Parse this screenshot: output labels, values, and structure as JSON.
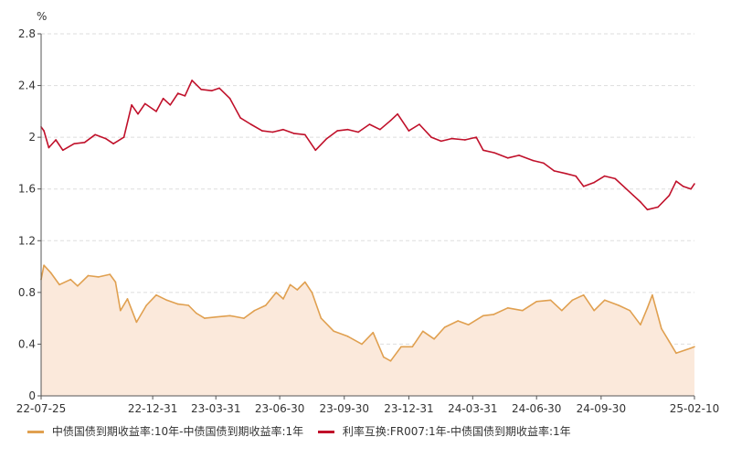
{
  "chart_data": {
    "type": "area",
    "ylabel": "%",
    "ylim": [
      0,
      2.8
    ],
    "yticks": [
      "0",
      "0.4",
      "0.8",
      "1.2",
      "1.6",
      "2",
      "2.4",
      "2.8"
    ],
    "xlim": [
      "2022-07-25",
      "2025-02-10"
    ],
    "xticks": [
      {
        "date": "2022-07-25",
        "label": "22-07-25"
      },
      {
        "date": "2022-12-31",
        "label": "22-12-31"
      },
      {
        "date": "2023-03-31",
        "label": "23-03-31"
      },
      {
        "date": "2023-06-30",
        "label": "23-06-30"
      },
      {
        "date": "2023-09-30",
        "label": "23-09-30"
      },
      {
        "date": "2023-12-31",
        "label": "23-12-31"
      },
      {
        "date": "2024-03-31",
        "label": "24-03-31"
      },
      {
        "date": "2024-06-30",
        "label": "24-06-30"
      },
      {
        "date": "2024-09-30",
        "label": "24-09-30"
      },
      {
        "date": "2025-02-10",
        "label": "25-02-10"
      }
    ],
    "grid": true,
    "legend_position": "bottom",
    "series": [
      {
        "name": "中债国债到期收益率:10年-中债国债到期收益率:1年",
        "color": "#e0a050",
        "fill": "#fbe9db",
        "style": "area",
        "points": [
          [
            "2022-07-25",
            0.9
          ],
          [
            "2022-07-29",
            1.01
          ],
          [
            "2022-08-08",
            0.95
          ],
          [
            "2022-08-20",
            0.86
          ],
          [
            "2022-09-05",
            0.9
          ],
          [
            "2022-09-15",
            0.85
          ],
          [
            "2022-09-30",
            0.93
          ],
          [
            "2022-10-15",
            0.92
          ],
          [
            "2022-10-31",
            0.94
          ],
          [
            "2022-11-08",
            0.88
          ],
          [
            "2022-11-15",
            0.66
          ],
          [
            "2022-11-25",
            0.75
          ],
          [
            "2022-12-08",
            0.57
          ],
          [
            "2022-12-22",
            0.7
          ],
          [
            "2023-01-05",
            0.78
          ],
          [
            "2023-01-20",
            0.74
          ],
          [
            "2023-02-05",
            0.71
          ],
          [
            "2023-02-20",
            0.7
          ],
          [
            "2023-03-03",
            0.64
          ],
          [
            "2023-03-15",
            0.6
          ],
          [
            "2023-04-01",
            0.61
          ],
          [
            "2023-04-20",
            0.62
          ],
          [
            "2023-05-10",
            0.6
          ],
          [
            "2023-05-25",
            0.66
          ],
          [
            "2023-06-10",
            0.7
          ],
          [
            "2023-06-25",
            0.8
          ],
          [
            "2023-07-05",
            0.75
          ],
          [
            "2023-07-15",
            0.86
          ],
          [
            "2023-07-25",
            0.82
          ],
          [
            "2023-08-05",
            0.88
          ],
          [
            "2023-08-15",
            0.8
          ],
          [
            "2023-08-28",
            0.6
          ],
          [
            "2023-09-15",
            0.5
          ],
          [
            "2023-10-05",
            0.46
          ],
          [
            "2023-10-25",
            0.4
          ],
          [
            "2023-11-10",
            0.49
          ],
          [
            "2023-11-25",
            0.3
          ],
          [
            "2023-12-05",
            0.27
          ],
          [
            "2023-12-20",
            0.38
          ],
          [
            "2024-01-05",
            0.38
          ],
          [
            "2024-01-20",
            0.5
          ],
          [
            "2024-02-05",
            0.44
          ],
          [
            "2024-02-20",
            0.53
          ],
          [
            "2024-03-10",
            0.58
          ],
          [
            "2024-03-25",
            0.55
          ],
          [
            "2024-04-15",
            0.62
          ],
          [
            "2024-04-30",
            0.63
          ],
          [
            "2024-05-20",
            0.68
          ],
          [
            "2024-06-10",
            0.66
          ],
          [
            "2024-06-30",
            0.73
          ],
          [
            "2024-07-20",
            0.74
          ],
          [
            "2024-08-05",
            0.66
          ],
          [
            "2024-08-20",
            0.74
          ],
          [
            "2024-09-05",
            0.78
          ],
          [
            "2024-09-20",
            0.66
          ],
          [
            "2024-10-05",
            0.74
          ],
          [
            "2024-10-25",
            0.7
          ],
          [
            "2024-11-10",
            0.66
          ],
          [
            "2024-11-25",
            0.55
          ],
          [
            "2024-12-05",
            0.68
          ],
          [
            "2024-12-12",
            0.78
          ],
          [
            "2024-12-25",
            0.52
          ],
          [
            "2025-01-05",
            0.42
          ],
          [
            "2025-01-15",
            0.33
          ],
          [
            "2025-02-05",
            0.37
          ],
          [
            "2025-02-10",
            0.38
          ]
        ]
      },
      {
        "name": "利率互换:FR007:1年-中债国债到期收益率:1年",
        "color": "#c0102a",
        "style": "line",
        "points": [
          [
            "2022-07-25",
            2.08
          ],
          [
            "2022-07-29",
            2.05
          ],
          [
            "2022-08-05",
            1.92
          ],
          [
            "2022-08-15",
            1.98
          ],
          [
            "2022-08-25",
            1.9
          ],
          [
            "2022-09-10",
            1.95
          ],
          [
            "2022-09-25",
            1.96
          ],
          [
            "2022-10-10",
            2.02
          ],
          [
            "2022-10-25",
            1.99
          ],
          [
            "2022-11-05",
            1.95
          ],
          [
            "2022-11-20",
            2.0
          ],
          [
            "2022-12-01",
            2.25
          ],
          [
            "2022-12-10",
            2.18
          ],
          [
            "2022-12-20",
            2.26
          ],
          [
            "2023-01-05",
            2.2
          ],
          [
            "2023-01-15",
            2.3
          ],
          [
            "2023-01-25",
            2.25
          ],
          [
            "2023-02-05",
            2.34
          ],
          [
            "2023-02-15",
            2.32
          ],
          [
            "2023-02-25",
            2.44
          ],
          [
            "2023-03-10",
            2.37
          ],
          [
            "2023-03-25",
            2.36
          ],
          [
            "2023-04-05",
            2.38
          ],
          [
            "2023-04-20",
            2.3
          ],
          [
            "2023-05-05",
            2.15
          ],
          [
            "2023-05-20",
            2.1
          ],
          [
            "2023-06-05",
            2.05
          ],
          [
            "2023-06-20",
            2.04
          ],
          [
            "2023-07-05",
            2.06
          ],
          [
            "2023-07-20",
            2.03
          ],
          [
            "2023-08-05",
            2.02
          ],
          [
            "2023-08-20",
            1.9
          ],
          [
            "2023-09-05",
            1.99
          ],
          [
            "2023-09-20",
            2.05
          ],
          [
            "2023-10-05",
            2.06
          ],
          [
            "2023-10-20",
            2.04
          ],
          [
            "2023-11-05",
            2.1
          ],
          [
            "2023-11-20",
            2.06
          ],
          [
            "2023-12-05",
            2.13
          ],
          [
            "2023-12-15",
            2.18
          ],
          [
            "2023-12-31",
            2.05
          ],
          [
            "2024-01-15",
            2.1
          ],
          [
            "2024-02-01",
            2.0
          ],
          [
            "2024-02-15",
            1.97
          ],
          [
            "2024-03-01",
            1.99
          ],
          [
            "2024-03-20",
            1.98
          ],
          [
            "2024-04-05",
            2.0
          ],
          [
            "2024-04-15",
            1.9
          ],
          [
            "2024-05-01",
            1.88
          ],
          [
            "2024-05-20",
            1.84
          ],
          [
            "2024-06-05",
            1.86
          ],
          [
            "2024-06-25",
            1.82
          ],
          [
            "2024-07-10",
            1.8
          ],
          [
            "2024-07-25",
            1.74
          ],
          [
            "2024-08-10",
            1.72
          ],
          [
            "2024-08-25",
            1.7
          ],
          [
            "2024-09-05",
            1.62
          ],
          [
            "2024-09-20",
            1.65
          ],
          [
            "2024-10-05",
            1.7
          ],
          [
            "2024-10-20",
            1.68
          ],
          [
            "2024-11-05",
            1.6
          ],
          [
            "2024-11-15",
            1.55
          ],
          [
            "2024-11-25",
            1.5
          ],
          [
            "2024-12-05",
            1.44
          ],
          [
            "2024-12-20",
            1.46
          ],
          [
            "2025-01-05",
            1.55
          ],
          [
            "2025-01-15",
            1.66
          ],
          [
            "2025-01-25",
            1.62
          ],
          [
            "2025-02-05",
            1.6
          ],
          [
            "2025-02-10",
            1.64
          ]
        ]
      }
    ]
  }
}
